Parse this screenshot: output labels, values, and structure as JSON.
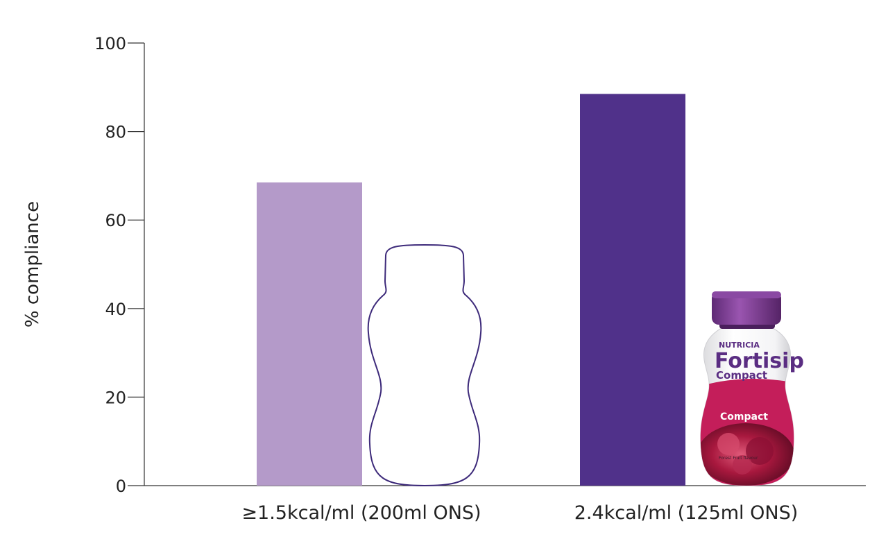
{
  "chart_data": {
    "type": "bar",
    "categories": [
      "≥1.5kcal/ml (200ml ONS)",
      "2.4kcal/ml (125ml ONS)"
    ],
    "values": [
      68.5,
      88.5
    ],
    "ylabel": "% compliance",
    "xlabel": "",
    "ylim": [
      0,
      100
    ],
    "yticks": [
      0,
      20,
      40,
      60,
      80,
      100
    ],
    "grid": false,
    "colors": [
      "#b49ac9",
      "#50318a"
    ]
  },
  "product": {
    "brand": "NUTRICIA",
    "name": "Fortisip",
    "variant": "Compact",
    "band_text": "Compact",
    "flavour": "Forest Fruit flavour",
    "colors": {
      "cap": "#7a3d8f",
      "band": "#c41e5a",
      "text": "#5a2d82"
    }
  },
  "outline_bottle": {
    "stroke": "#3d2a7a"
  }
}
